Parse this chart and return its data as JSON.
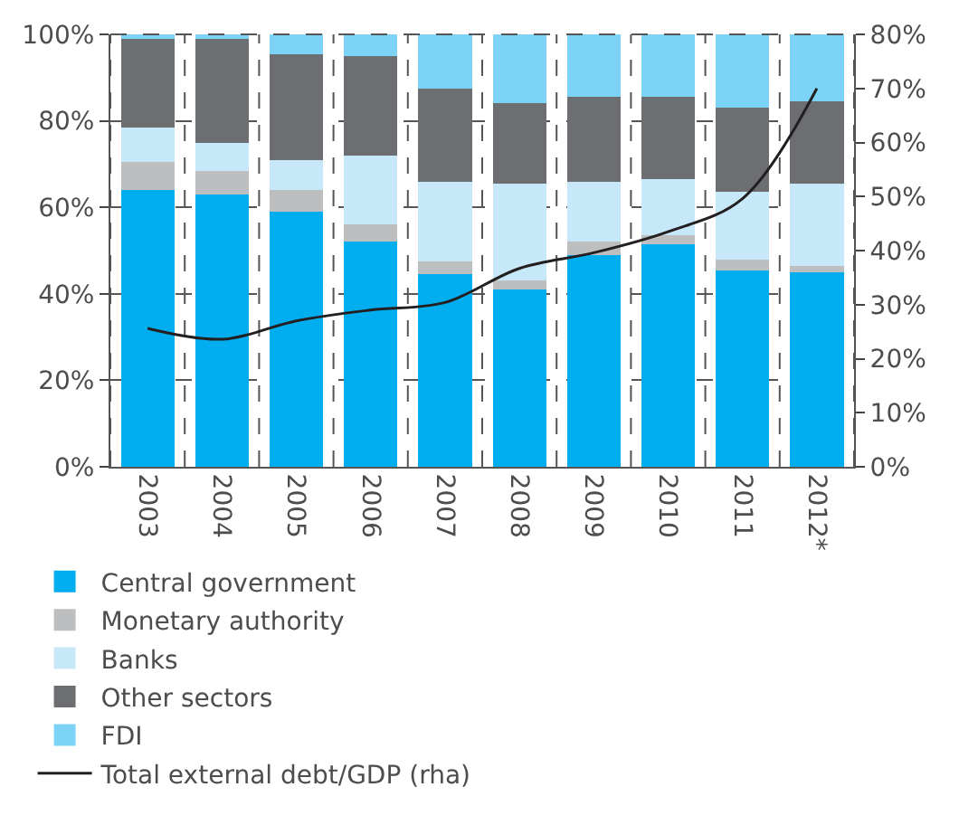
{
  "chart_data": {
    "type": "bar",
    "stacked": true,
    "categories": [
      "2003",
      "2004",
      "2005",
      "2006",
      "2007",
      "2008",
      "2009",
      "2010",
      "2011",
      "2012*"
    ],
    "series": [
      {
        "name": "Central government",
        "color": "#00aeef",
        "values": [
          64,
          63,
          59,
          52,
          44.5,
          41,
          49,
          51.5,
          45.5,
          45
        ]
      },
      {
        "name": "Monetary authority",
        "color": "#bcbec0",
        "values": [
          6.5,
          5.5,
          5,
          4,
          3,
          2,
          3,
          2,
          2.5,
          1.5
        ]
      },
      {
        "name": "Banks",
        "color": "#c7e8f8",
        "values": [
          8,
          6.5,
          7,
          16,
          18.5,
          22.5,
          14,
          13,
          15.5,
          19
        ]
      },
      {
        "name": "Other sectors",
        "color": "#6d6e71",
        "values": [
          20.5,
          24,
          24.5,
          23,
          21.5,
          18.5,
          19.5,
          19,
          19.5,
          19
        ]
      },
      {
        "name": "FDI",
        "color": "#7dd3f5",
        "values": [
          1,
          1,
          4.5,
          5,
          12.5,
          16,
          14.5,
          14.5,
          17,
          15.5
        ]
      },
      {
        "name": "Total external debt/GDP (rha)",
        "type": "line",
        "axis": "y2",
        "color": "#231f20",
        "values": [
          25.6,
          23.6,
          27,
          29,
          30.4,
          36.7,
          39.6,
          43.5,
          49.6,
          70
        ]
      }
    ],
    "ylim": [
      0,
      100
    ],
    "yticks": [
      {
        "value": 0,
        "label": "0%"
      },
      {
        "value": 20,
        "label": "20%"
      },
      {
        "value": 40,
        "label": "40%"
      },
      {
        "value": 60,
        "label": "60%"
      },
      {
        "value": 80,
        "label": "80%"
      },
      {
        "value": 100,
        "label": "100%"
      }
    ],
    "y2lim": [
      0,
      80
    ],
    "y2ticks": [
      {
        "value": 0,
        "label": "0%"
      },
      {
        "value": 10,
        "label": "10%"
      },
      {
        "value": 20,
        "label": "20%"
      },
      {
        "value": 30,
        "label": "30%"
      },
      {
        "value": 40,
        "label": "40%"
      },
      {
        "value": 50,
        "label": "50%"
      },
      {
        "value": 60,
        "label": "60%"
      },
      {
        "value": 70,
        "label": "70%"
      },
      {
        "value": 80,
        "label": "80%"
      }
    ],
    "grid": true,
    "legend": "bottom",
    "line_style": "solid"
  }
}
